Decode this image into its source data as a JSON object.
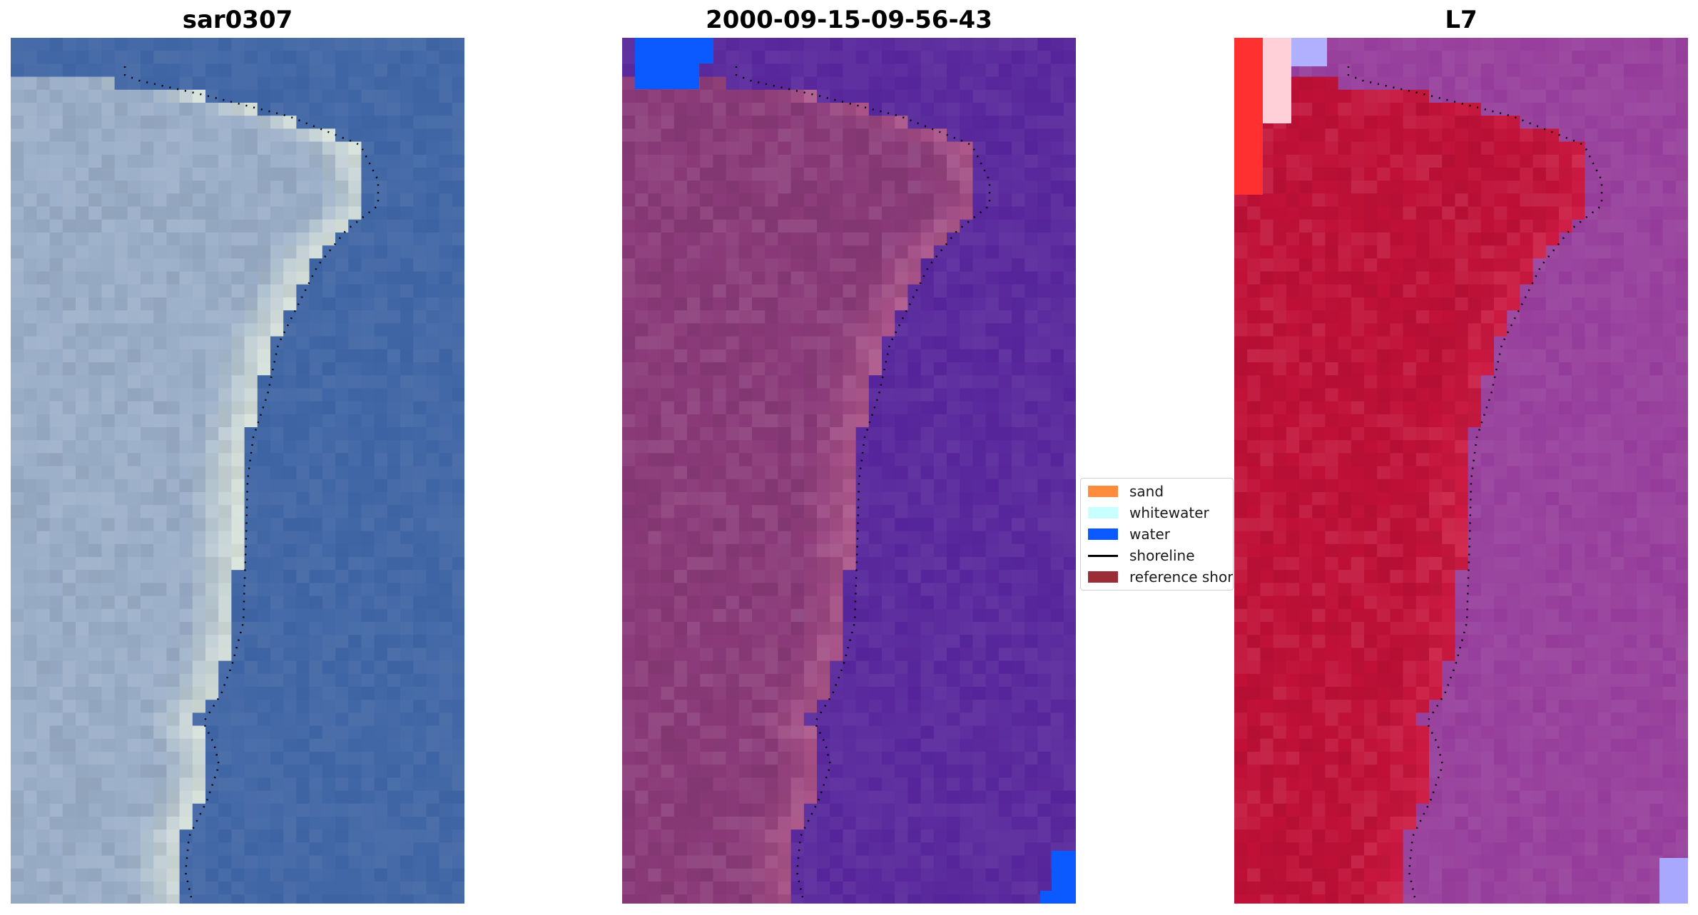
{
  "panels": [
    {
      "title": "sar0307",
      "style": "true-color"
    },
    {
      "title": "2000-09-15-09-56-43",
      "style": "classified"
    },
    {
      "title": "L7",
      "style": "index"
    }
  ],
  "legend": {
    "items": [
      {
        "label": "sand",
        "color": "#ff8c3c",
        "kind": "patch"
      },
      {
        "label": "whitewater",
        "color": "#c8ffff",
        "kind": "patch"
      },
      {
        "label": "water",
        "color": "#0a5aff",
        "kind": "patch"
      },
      {
        "label": "shoreline",
        "color": "#000000",
        "kind": "line"
      },
      {
        "label": "reference shoreline",
        "color": "#9b2d36",
        "kind": "patch"
      }
    ]
  },
  "colors": {
    "water_true": "#3d63a3",
    "land_true": "#9aaec8",
    "sand_bright": "#e8f0e0",
    "water_class": "#55249a",
    "land_class": "#8a3a78",
    "land_class_light": "#b45c8e",
    "water_blue": "#0a5aff",
    "land_index": "#c01038",
    "water_index": "#953c9a"
  }
}
